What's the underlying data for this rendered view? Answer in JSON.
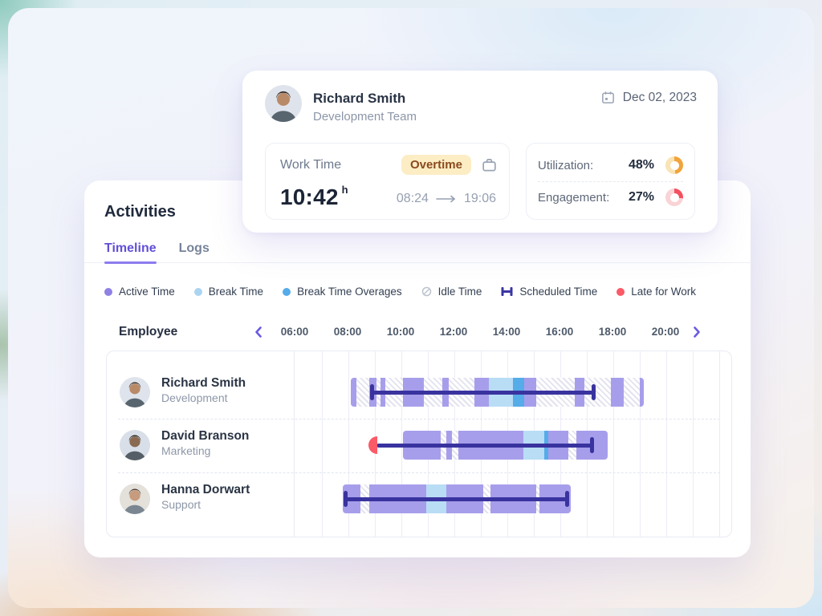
{
  "summary": {
    "name": "Richard Smith",
    "team": "Development Team",
    "date": "Dec 02, 2023",
    "work_time": {
      "label": "Work Time",
      "badge": "Overtime",
      "value": "10:42",
      "unit": "h",
      "start": "08:24",
      "end": "19:06"
    },
    "metrics": [
      {
        "label": "Utilization:",
        "value": "48%",
        "percent": 48,
        "color": "#F1A43C",
        "track": "#FAE3B4"
      },
      {
        "label": "Engagement:",
        "value": "27%",
        "percent": 27,
        "color": "#F4505F",
        "track": "#F9D3D5"
      }
    ]
  },
  "activities": {
    "title": "Activities",
    "tabs": [
      {
        "label": "Timeline",
        "active": true
      },
      {
        "label": "Logs",
        "active": false
      }
    ],
    "legend": [
      {
        "label": "Active Time",
        "icon": "dot",
        "color": "#8F80E4"
      },
      {
        "label": "Break Time",
        "icon": "dot",
        "color": "#ABD4F1"
      },
      {
        "label": "Break Time Overages",
        "icon": "dot",
        "color": "#55ACE9"
      },
      {
        "label": "Idle Time",
        "icon": "slashed-circle",
        "color": "#BCC3CE"
      },
      {
        "label": "Scheduled Time",
        "icon": "ibeam",
        "color": "#3A35A3"
      },
      {
        "label": "Late for Work",
        "icon": "dot",
        "color": "#FB5A67"
      }
    ],
    "header": {
      "employee": "Employee",
      "ticks": [
        "06:00",
        "08:00",
        "10:00",
        "12:00",
        "14:00",
        "16:00",
        "18:00",
        "20:00"
      ]
    }
  },
  "chart_data": {
    "type": "timeline",
    "title": "Employee activity timeline",
    "x_axis": {
      "unit": "hour-of-day",
      "start": 6,
      "end": 22,
      "tick_interval_hours": 2,
      "tick_labels": [
        "06:00",
        "08:00",
        "10:00",
        "12:00",
        "14:00",
        "16:00",
        "18:00",
        "20:00"
      ]
    },
    "segment_colors": {
      "active": "#A79EEB",
      "break": "#B9DDF5",
      "overage": "#55ACE9",
      "idle": "white-hatched",
      "scheduled": "#39339F",
      "late": "#FB5A67"
    },
    "rows": [
      {
        "name": "Richard Smith",
        "department": "Development",
        "late": false,
        "scheduled": {
          "start": 8.9,
          "end": 17.25
        },
        "segments": [
          [
            "active",
            8.1,
            8.3
          ],
          [
            "idle",
            8.3,
            8.8
          ],
          [
            "active",
            8.8,
            9.05
          ],
          [
            "idle",
            9.05,
            9.2
          ],
          [
            "active",
            9.2,
            9.4
          ],
          [
            "idle",
            9.4,
            10.05
          ],
          [
            "active",
            10.05,
            10.85
          ],
          [
            "idle",
            10.85,
            11.55
          ],
          [
            "active",
            11.55,
            11.8
          ],
          [
            "idle",
            11.8,
            12.75
          ],
          [
            "active",
            12.75,
            13.3
          ],
          [
            "break",
            13.3,
            14.2
          ],
          [
            "overage",
            14.2,
            14.65
          ],
          [
            "active",
            14.65,
            15.1
          ],
          [
            "idle",
            15.1,
            16.55
          ],
          [
            "active",
            16.55,
            16.9
          ],
          [
            "idle",
            16.9,
            17.9
          ],
          [
            "active",
            17.9,
            18.4
          ],
          [
            "idle",
            18.4,
            19.0
          ],
          [
            "active",
            19.0,
            19.15
          ]
        ]
      },
      {
        "name": "David Branson",
        "department": "Marketing",
        "late": true,
        "scheduled": {
          "start": 9.05,
          "end": 17.2
        },
        "segments": [
          [
            "active",
            10.05,
            11.5
          ],
          [
            "idle",
            11.5,
            11.7
          ],
          [
            "active",
            11.7,
            11.9
          ],
          [
            "idle",
            11.9,
            12.15
          ],
          [
            "active",
            12.15,
            14.6
          ],
          [
            "break",
            14.6,
            15.4
          ],
          [
            "overage",
            15.4,
            15.55
          ],
          [
            "active",
            15.55,
            16.3
          ],
          [
            "idle",
            16.3,
            16.6
          ],
          [
            "active",
            16.6,
            17.8
          ]
        ]
      },
      {
        "name": "Hanna Dorwart",
        "department": "Support",
        "late": false,
        "scheduled": {
          "start": 7.9,
          "end": 16.25
        },
        "segments": [
          [
            "active",
            7.8,
            8.45
          ],
          [
            "idle",
            8.45,
            8.8
          ],
          [
            "active",
            8.8,
            10.95
          ],
          [
            "break",
            10.95,
            11.7
          ],
          [
            "active",
            11.7,
            13.1
          ],
          [
            "idle",
            13.1,
            13.35
          ],
          [
            "active",
            13.35,
            15.1
          ],
          [
            "idle",
            15.1,
            15.2
          ],
          [
            "active",
            15.2,
            16.4
          ]
        ]
      }
    ]
  }
}
